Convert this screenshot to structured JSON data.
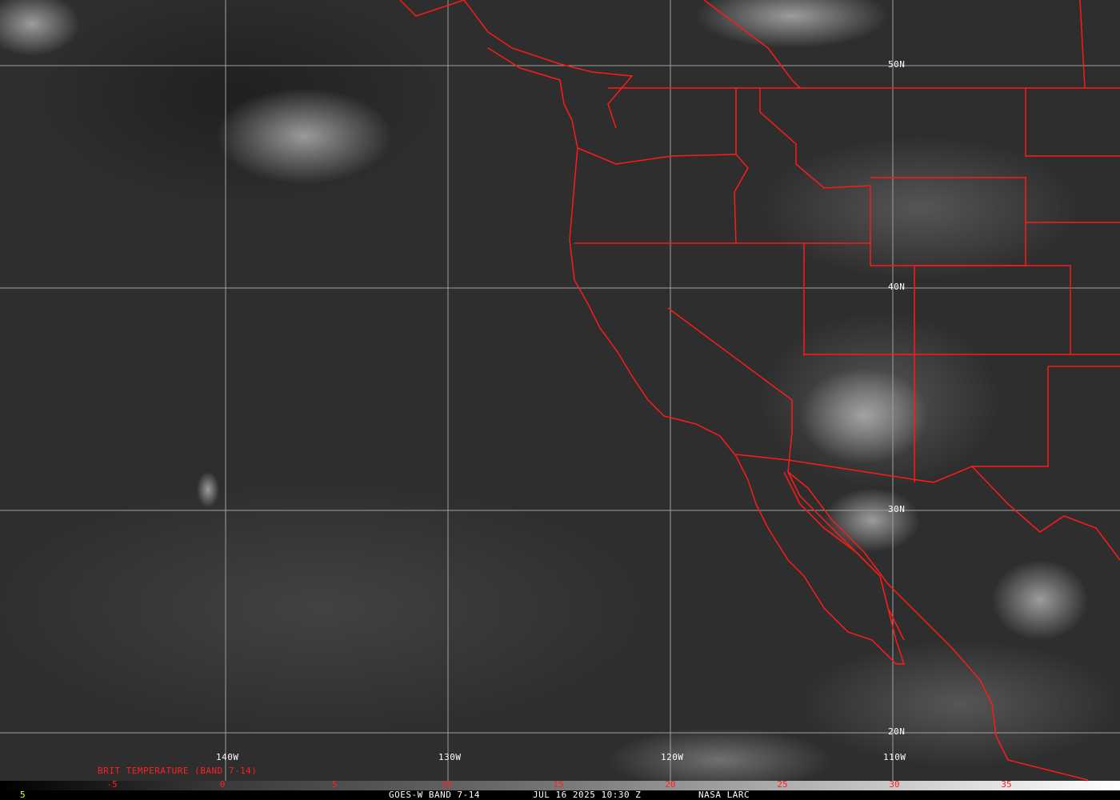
{
  "map": {
    "longitude_labels": [
      "140W",
      "130W",
      "120W",
      "110W"
    ],
    "latitude_labels": [
      "50N",
      "40N",
      "30N",
      "20N"
    ],
    "boundary_color": "#ff0000",
    "grid_color": "#a0a0a0"
  },
  "colorbar": {
    "title": "BRIT TEMPERATURE (BAND 7-14)",
    "ticks": [
      "-5",
      "0",
      "5",
      "10",
      "15",
      "20",
      "25",
      "30",
      "35"
    ],
    "left_value": "5"
  },
  "footer": {
    "product": "GOES-W BAND 7-14",
    "datetime": "JUL 16 2025 10:30 Z",
    "source": "NASA LARC"
  }
}
